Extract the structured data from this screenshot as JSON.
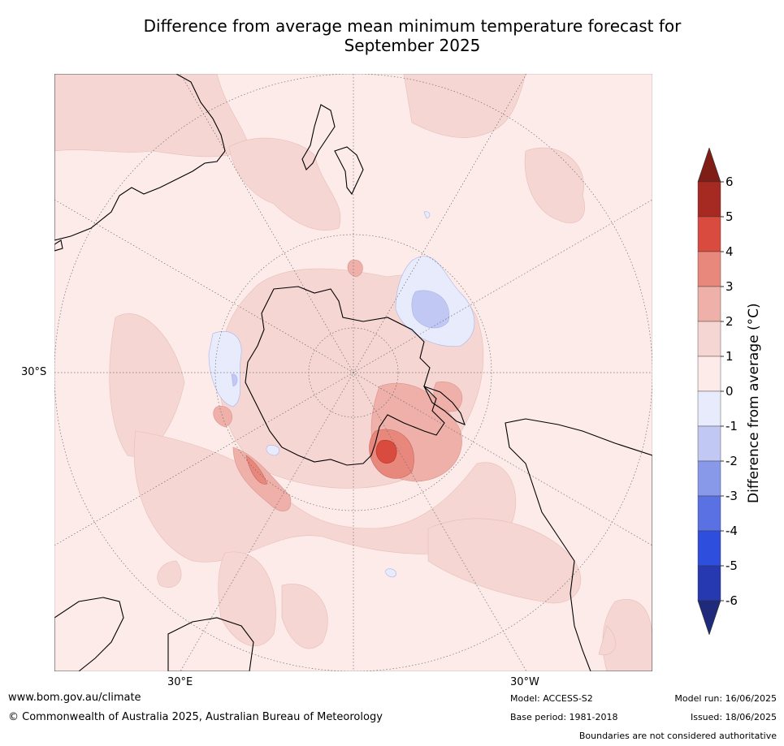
{
  "title_line1": "Difference from average mean minimum temperature forecast for",
  "title_line2": "September 2025",
  "labels": {
    "lat_30s": "30°S",
    "lon_30e": "30°E",
    "lon_30w": "30°W"
  },
  "colorbar": {
    "label": "Difference from average (°C)",
    "ticks": [
      "6",
      "5",
      "4",
      "3",
      "2",
      "1",
      "0",
      "-1",
      "-2",
      "-3",
      "-4",
      "-5",
      "-6"
    ],
    "bins": [
      {
        "range": "> 6",
        "color": "#7f1d17"
      },
      {
        "range": "5 to 6",
        "color": "#a72a22"
      },
      {
        "range": "4 to 5",
        "color": "#d94b3e"
      },
      {
        "range": "3 to 4",
        "color": "#e8877c"
      },
      {
        "range": "2 to 3",
        "color": "#eeb0a8"
      },
      {
        "range": "1 to 2",
        "color": "#f5d6d3"
      },
      {
        "range": "0 to 1",
        "color": "#fcebe9"
      },
      {
        "range": "-1 to 0",
        "color": "#e8ebfb"
      },
      {
        "range": "-2 to -1",
        "color": "#c0c8f3"
      },
      {
        "range": "-3 to -2",
        "color": "#8899ea"
      },
      {
        "range": "-4 to -3",
        "color": "#5a71e3"
      },
      {
        "range": "-5 to -4",
        "color": "#2e4fdd"
      },
      {
        "range": "-6 to -5",
        "color": "#2639b0"
      },
      {
        "range": "< -6",
        "color": "#1f2a7a"
      }
    ]
  },
  "footer": {
    "url": "www.bom.gov.au/climate",
    "copyright": "© Commonwealth of Australia 2025, Australian Bureau of Meteorology",
    "model": "Model: ACCESS-S2",
    "base_period": "Base period: 1981-2018",
    "model_run": "Model run: 16/06/2025",
    "issued": "Issued: 18/06/2025",
    "disclaimer": "Boundaries are not considered authoritative"
  }
}
